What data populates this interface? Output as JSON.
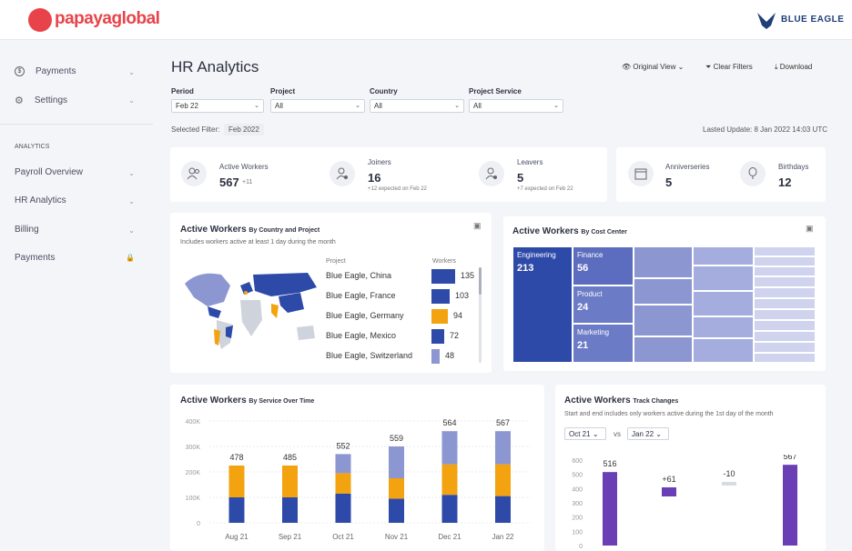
{
  "header": {
    "logo": "papayaglobal",
    "brand": "BLUE EAGLE"
  },
  "sidebar": {
    "items": [
      {
        "label": "Payments"
      },
      {
        "label": "Settings"
      }
    ],
    "section": "ANALYTICS",
    "analytics": [
      {
        "label": "Payroll Overview"
      },
      {
        "label": "HR Analytics"
      },
      {
        "label": "Billing"
      },
      {
        "label": "Payments"
      }
    ]
  },
  "page": {
    "title": "HR Analytics",
    "original_view": "Original View",
    "clear_filters": "Clear Filters",
    "download": "Download"
  },
  "filters": {
    "period": {
      "label": "Period",
      "value": "Feb 22"
    },
    "project": {
      "label": "Project",
      "value": "All"
    },
    "country": {
      "label": "Country",
      "value": "All"
    },
    "service": {
      "label": "Project Service",
      "value": "All"
    },
    "selected_label": "Selected Filter:",
    "selected_value": "Feb 2022",
    "last_update": "Lasted Update: 8 Jan 2022 14:03 UTC"
  },
  "kpis": {
    "active": {
      "label": "Active Workers",
      "value": "567",
      "delta": "+11"
    },
    "joiners": {
      "label": "Joiners",
      "value": "16",
      "sub": "+12 expected on Feb 22"
    },
    "leavers": {
      "label": "Leavers",
      "value": "5",
      "sub": "+7 expected on Feb 22"
    },
    "anniv": {
      "label": "Anniverseries",
      "value": "5"
    },
    "bday": {
      "label": "Birthdays",
      "value": "12"
    }
  },
  "country_chart": {
    "title": "Active Workers",
    "title_small": "By Country and Project",
    "subtitle": "Includes workers active at least 1 day during the month",
    "col_project": "Project",
    "col_workers": "Workers",
    "rows": [
      {
        "label": "Blue Eagle, China",
        "value": 135,
        "color": "#2e4aa8"
      },
      {
        "label": "Blue Eagle, France",
        "value": 103,
        "color": "#2e4aa8"
      },
      {
        "label": "Blue Eagle, Germany",
        "value": 94,
        "color": "#f2a30f"
      },
      {
        "label": "Blue Eagle, Mexico",
        "value": 72,
        "color": "#2e4aa8"
      },
      {
        "label": "Blue Eagle, Switzerland",
        "value": 48,
        "color": "#8c97d2"
      }
    ]
  },
  "cost_center": {
    "title": "Active Workers",
    "title_small": "By Cost Center",
    "cells": [
      {
        "label": "Engineering",
        "value": "213"
      },
      {
        "label": "Finance",
        "value": "56"
      },
      {
        "label": "Product",
        "value": "24"
      },
      {
        "label": "Marketing",
        "value": "21"
      }
    ]
  },
  "chart_data": [
    {
      "type": "bar",
      "title": "Active Workers By Service Over Time",
      "categories": [
        "Aug 21",
        "Sep 21",
        "Oct 21",
        "Nov 21",
        "Dec 21",
        "Jan 22"
      ],
      "totals": [
        478,
        485,
        552,
        559,
        564,
        567
      ],
      "series": [
        {
          "values": [
            100,
            100,
            115,
            95,
            110,
            105
          ],
          "color": "#2e4aa8"
        },
        {
          "values": [
            125,
            125,
            80,
            80,
            120,
            125
          ],
          "color": "#f2a30f"
        },
        {
          "values": [
            0,
            0,
            75,
            125,
            130,
            130
          ],
          "color": "#8c97d2"
        }
      ],
      "yticks": [
        "400K",
        "300K",
        "200K",
        "100K",
        "0"
      ],
      "ylim": [
        0,
        400
      ]
    },
    {
      "type": "bar",
      "title": "Active Workers Track Changes",
      "categories": [
        "Oct 21",
        "+61",
        "-10",
        "Jan 22"
      ],
      "labels": [
        "516",
        "+61",
        "-10",
        "567"
      ],
      "yticks": [
        "600",
        "500",
        "400",
        "300",
        "200",
        "100",
        "0"
      ],
      "ylim": [
        0,
        600
      ]
    }
  ],
  "service_chart": {
    "title": "Active Workers",
    "title_small": "By Service Over Time"
  },
  "track_chart": {
    "title": "Active Workers",
    "title_small": "Track Changes",
    "subtitle": "Start and end includes only workers active during the 1st day of the month",
    "from": "Oct 21",
    "vs": "vs",
    "to": "Jan 22"
  }
}
